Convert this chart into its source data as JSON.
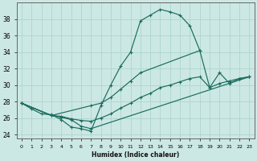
{
  "xlabel": "Humidex (Indice chaleur)",
  "xlim": [
    -0.5,
    23.5
  ],
  "ylim": [
    23.5,
    40.0
  ],
  "yticks": [
    24,
    26,
    28,
    30,
    32,
    34,
    36,
    38
  ],
  "xticks": [
    0,
    1,
    2,
    3,
    4,
    5,
    6,
    7,
    8,
    9,
    10,
    11,
    12,
    13,
    14,
    15,
    16,
    17,
    18,
    19,
    20,
    21,
    22,
    23
  ],
  "background_color": "#cce8e4",
  "grid_color": "#aed4ce",
  "line_color": "#1a6b5e",
  "line1_x": [
    0,
    1,
    2,
    3,
    4,
    5,
    6,
    7,
    8,
    9,
    10,
    11,
    12,
    13,
    14,
    15,
    16,
    17,
    18
  ],
  "line1_y": [
    27.8,
    27.1,
    26.5,
    26.4,
    25.8,
    24.9,
    24.7,
    24.4,
    27.5,
    30.0,
    32.3,
    34.0,
    37.8,
    38.5,
    39.2,
    38.9,
    38.5,
    37.2,
    34.2
  ],
  "line2_x": [
    0,
    3,
    7,
    8,
    9,
    10,
    11,
    12,
    18,
    19,
    20,
    21,
    22,
    23
  ],
  "line2_y": [
    27.8,
    26.3,
    27.5,
    27.8,
    28.5,
    29.5,
    30.5,
    31.5,
    34.2,
    29.7,
    31.5,
    30.2,
    30.8,
    31.0
  ],
  "line3_x": [
    0,
    3,
    4,
    5,
    6,
    7,
    23
  ],
  "line3_y": [
    27.8,
    26.3,
    26.1,
    25.8,
    25.0,
    24.7,
    31.0
  ],
  "line4_x": [
    0,
    3,
    4,
    5,
    6,
    7,
    8,
    9,
    10,
    11,
    12,
    13,
    14,
    15,
    16,
    17,
    18,
    19,
    20,
    21,
    22,
    23
  ],
  "line4_y": [
    27.8,
    26.3,
    26.2,
    25.9,
    25.7,
    25.6,
    26.0,
    26.5,
    27.2,
    27.8,
    28.5,
    29.0,
    29.7,
    30.0,
    30.4,
    30.8,
    31.0,
    29.7,
    30.2,
    30.5,
    30.8,
    31.0
  ]
}
